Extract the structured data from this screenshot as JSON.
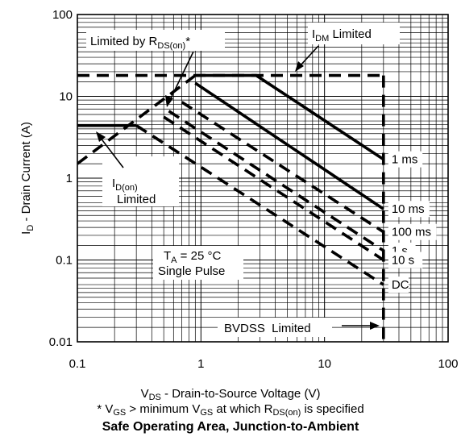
{
  "chart_data": {
    "type": "line",
    "title": "Safe Operating Area, Junction-to-Ambient",
    "xlabel": {
      "main": "V",
      "sub": "DS",
      "rest": " - Drain-to-Source Voltage (V)"
    },
    "ylabel": {
      "main": "I",
      "sub": "D",
      "rest": " - Drain Current (A)"
    },
    "footnote": {
      "p1": "* V",
      "s1": "GS",
      "p2": " > minimum V",
      "s2": "GS",
      "p3": " at which R",
      "s3": "DS(on)",
      "p4": " is specified"
    },
    "x_scale": "log",
    "y_scale": "log",
    "xlim": [
      0.1,
      100
    ],
    "ylim": [
      0.01,
      100
    ],
    "grid": true,
    "x_ticks": [
      {
        "value": 0.1,
        "label": "0.1"
      },
      {
        "value": 1,
        "label": "1"
      },
      {
        "value": 10,
        "label": "10"
      },
      {
        "value": 100,
        "label": "100"
      }
    ],
    "y_ticks": [
      {
        "value": 0.01,
        "label": "0.01"
      },
      {
        "value": 0.1,
        "label": "0.1"
      },
      {
        "value": 1,
        "label": "1"
      },
      {
        "value": 10,
        "label": "10"
      },
      {
        "value": 100,
        "label": "100"
      }
    ],
    "series": [
      {
        "name": "1 ms",
        "style": "solid",
        "points": [
          [
            0.9,
            18
          ],
          [
            2.8,
            18
          ],
          [
            30,
            1.7
          ]
        ]
      },
      {
        "name": "10 ms",
        "style": "solid",
        "points": [
          [
            0.9,
            14.5
          ],
          [
            30,
            0.42
          ]
        ]
      },
      {
        "name": "100 ms",
        "style": "dashed",
        "points": [
          [
            0.7,
            8.5
          ],
          [
            30,
            0.22
          ]
        ]
      },
      {
        "name": "1 s",
        "style": "dashed",
        "points": [
          [
            0.55,
            6.6
          ],
          [
            30,
            0.13
          ]
        ]
      },
      {
        "name": "10 s",
        "style": "dashed",
        "points": [
          [
            0.5,
            5.6
          ],
          [
            30,
            0.1
          ]
        ]
      },
      {
        "name": "DC",
        "style": "dashed",
        "points": [
          [
            0.3,
            4.4
          ],
          [
            30,
            0.05
          ]
        ]
      }
    ],
    "limits": [
      {
        "name": "Limited by R_DS(on)",
        "style": "dashed",
        "points": [
          [
            0.1,
            1.5
          ],
          [
            0.9,
            18
          ]
        ]
      },
      {
        "name": "I_DM Limited",
        "style": "dashed",
        "points": [
          [
            0.1,
            18
          ],
          [
            30,
            18
          ]
        ]
      },
      {
        "name": "I_D(on) Limited",
        "style": "solid",
        "points": [
          [
            0.1,
            4.4
          ],
          [
            0.3,
            4.4
          ]
        ]
      },
      {
        "name": "BVDSS Limited",
        "style": "dashed",
        "points": [
          [
            30,
            18
          ],
          [
            30,
            0.01
          ]
        ]
      }
    ],
    "annotations": {
      "rds_limited": {
        "main": "Limited by R",
        "sub": "DS(on)",
        "rest": "*"
      },
      "idm_limited": {
        "main": "I",
        "sub": "DM",
        "rest": " Limited"
      },
      "idon_limited": {
        "main": "I",
        "sub": "D(on)",
        "line2": "Limited"
      },
      "conditions": {
        "main": "T",
        "sub": "A",
        "rest": " = 25 °C",
        "line2": "Single Pulse"
      },
      "bvdss_limited": "BVDSS  Limited",
      "curve_labels": [
        "1 ms",
        "10 ms",
        "100 ms",
        "1 s",
        "10 s",
        "DC"
      ]
    }
  }
}
